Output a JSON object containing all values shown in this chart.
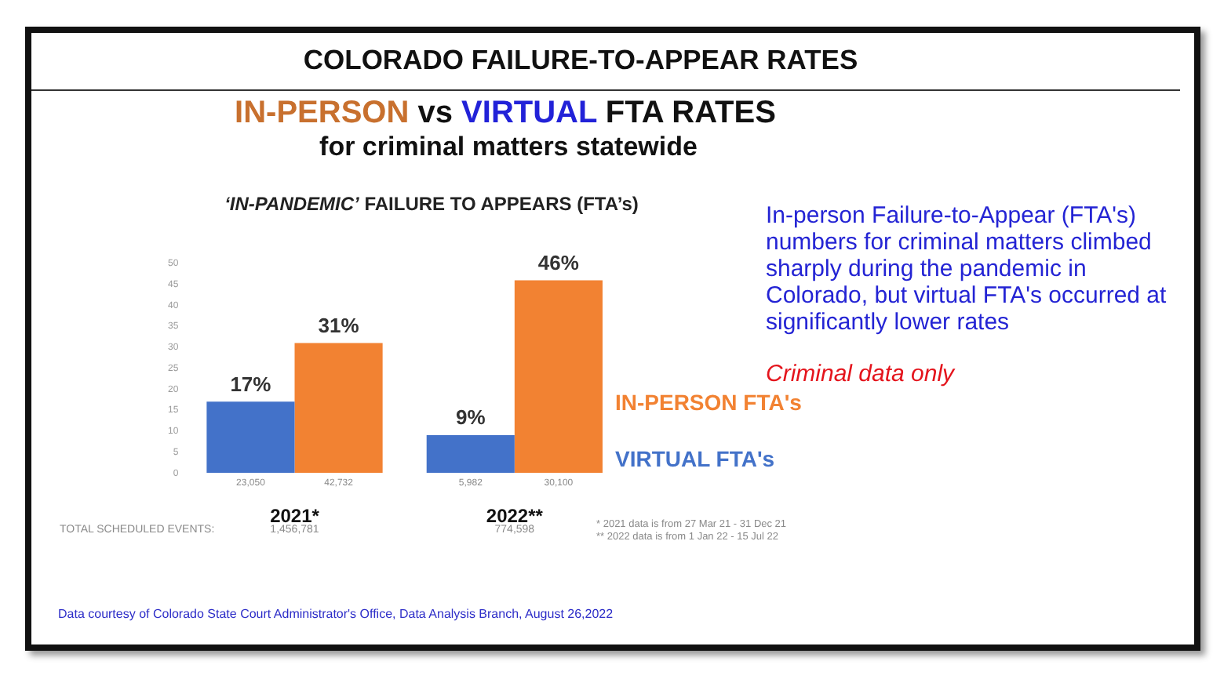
{
  "chart_data": {
    "type": "bar",
    "title": "COLORADO FAILURE-TO-APPEAR RATES",
    "subtitle": "IN-PERSON vs VIRTUAL FTA RATES",
    "categories": [
      "2021*",
      "2022**"
    ],
    "series": [
      {
        "name": "VIRTUAL FTA's",
        "color": "#4372c9",
        "values": [
          17,
          9
        ],
        "value_labels": [
          "17%",
          "9%"
        ]
      },
      {
        "name": "IN-PERSON FTA's",
        "color": "#f28232",
        "values": [
          31,
          46
        ],
        "value_labels": [
          "31%",
          "46%"
        ]
      }
    ],
    "ylim": [
      0,
      50
    ],
    "yticks": [
      0,
      5,
      10,
      15,
      20,
      25,
      30,
      35,
      40,
      45,
      50
    ],
    "annotations": [
      "for criminal matters statewide",
      "‘IN-PANDEMIC’ FAILURE TO APPEARS (FTA’s)",
      "In-person Failure-to-Appear (FTA's) numbers for criminal matters climbed sharply during the pandemic in Colorado, but virtual FTA's occurred at significantly lower rates",
      "Criminal data only",
      "* 2021 data is from 27 Mar 21 - 31 Dec 21",
      "** 2022 data is from 1 Jan 22 - 15 Jul 22",
      "Data courtesy of Colorado State Court Administrator's Office, Data Analysis Branch, August 26,2022",
      "TOTAL SCHEDULED EVENTS:",
      "1,456,781",
      "774,598",
      "23,050",
      "42,732",
      "5,982",
      "30,100"
    ]
  }
}
